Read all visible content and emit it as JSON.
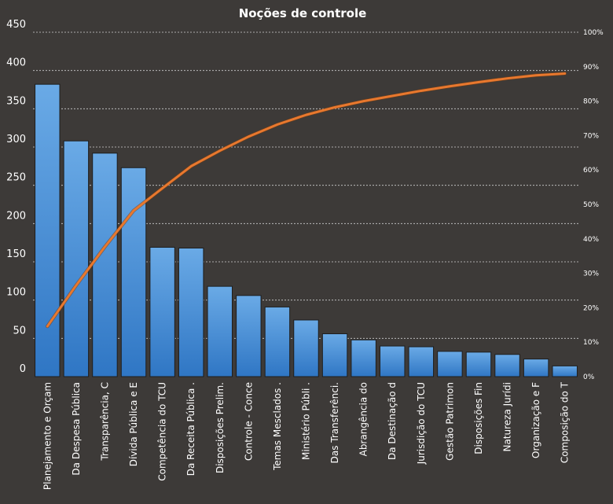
{
  "colors": {
    "background": "#3d3a38",
    "bar_fill_top": "#6aaae6",
    "bar_fill_bottom": "#2f76c4",
    "bar_stroke": "#1e1e1e",
    "line": "#e8782e"
  },
  "chart_data": {
    "type": "bar",
    "title": "Noções de controle",
    "xlabel": "",
    "ylabel": "",
    "ylim": [
      0,
      450
    ],
    "y_ticks": [
      0,
      50,
      100,
      150,
      200,
      250,
      300,
      350,
      400,
      450
    ],
    "y2lim": [
      0,
      100
    ],
    "y2_ticks": [
      "0%",
      "10%",
      "20%",
      "30%",
      "40%",
      "50%",
      "60%",
      "70%",
      "80%",
      "90%",
      "100%"
    ],
    "grid": true,
    "legend": "none",
    "categories": [
      "Planejamento e Orçam",
      "Da Despesa Pública",
      "Transparência, C",
      "Dívida Pública e E",
      "Competência do TCU",
      "Da Receita Pública .",
      "Disposições Prelim.",
      "Controle - Conce",
      "Temas Mesclados .",
      "Ministério Públi .",
      "Das Transferênci.",
      "Abrangência do",
      "Da Destinação d",
      "Jurisdição do TCU",
      "Gestão Patrimon",
      "Disposições Fin",
      "Natureza Jurídi",
      "Organização e F",
      "Composição do T"
    ],
    "series": [
      {
        "type": "bar",
        "axis": "left",
        "values": [
          382,
          308,
          292,
          273,
          169,
          168,
          118,
          106,
          91,
          74,
          56,
          48,
          40,
          39,
          33,
          32,
          29,
          23,
          14
        ]
      },
      {
        "type": "line",
        "axis": "right",
        "values": [
          14.6,
          26.5,
          37.7,
          48.2,
          54.7,
          61.1,
          65.6,
          69.7,
          73.2,
          76.0,
          78.2,
          80.0,
          81.5,
          83.0,
          84.3,
          85.5,
          86.6,
          87.5,
          88.0
        ]
      }
    ]
  }
}
